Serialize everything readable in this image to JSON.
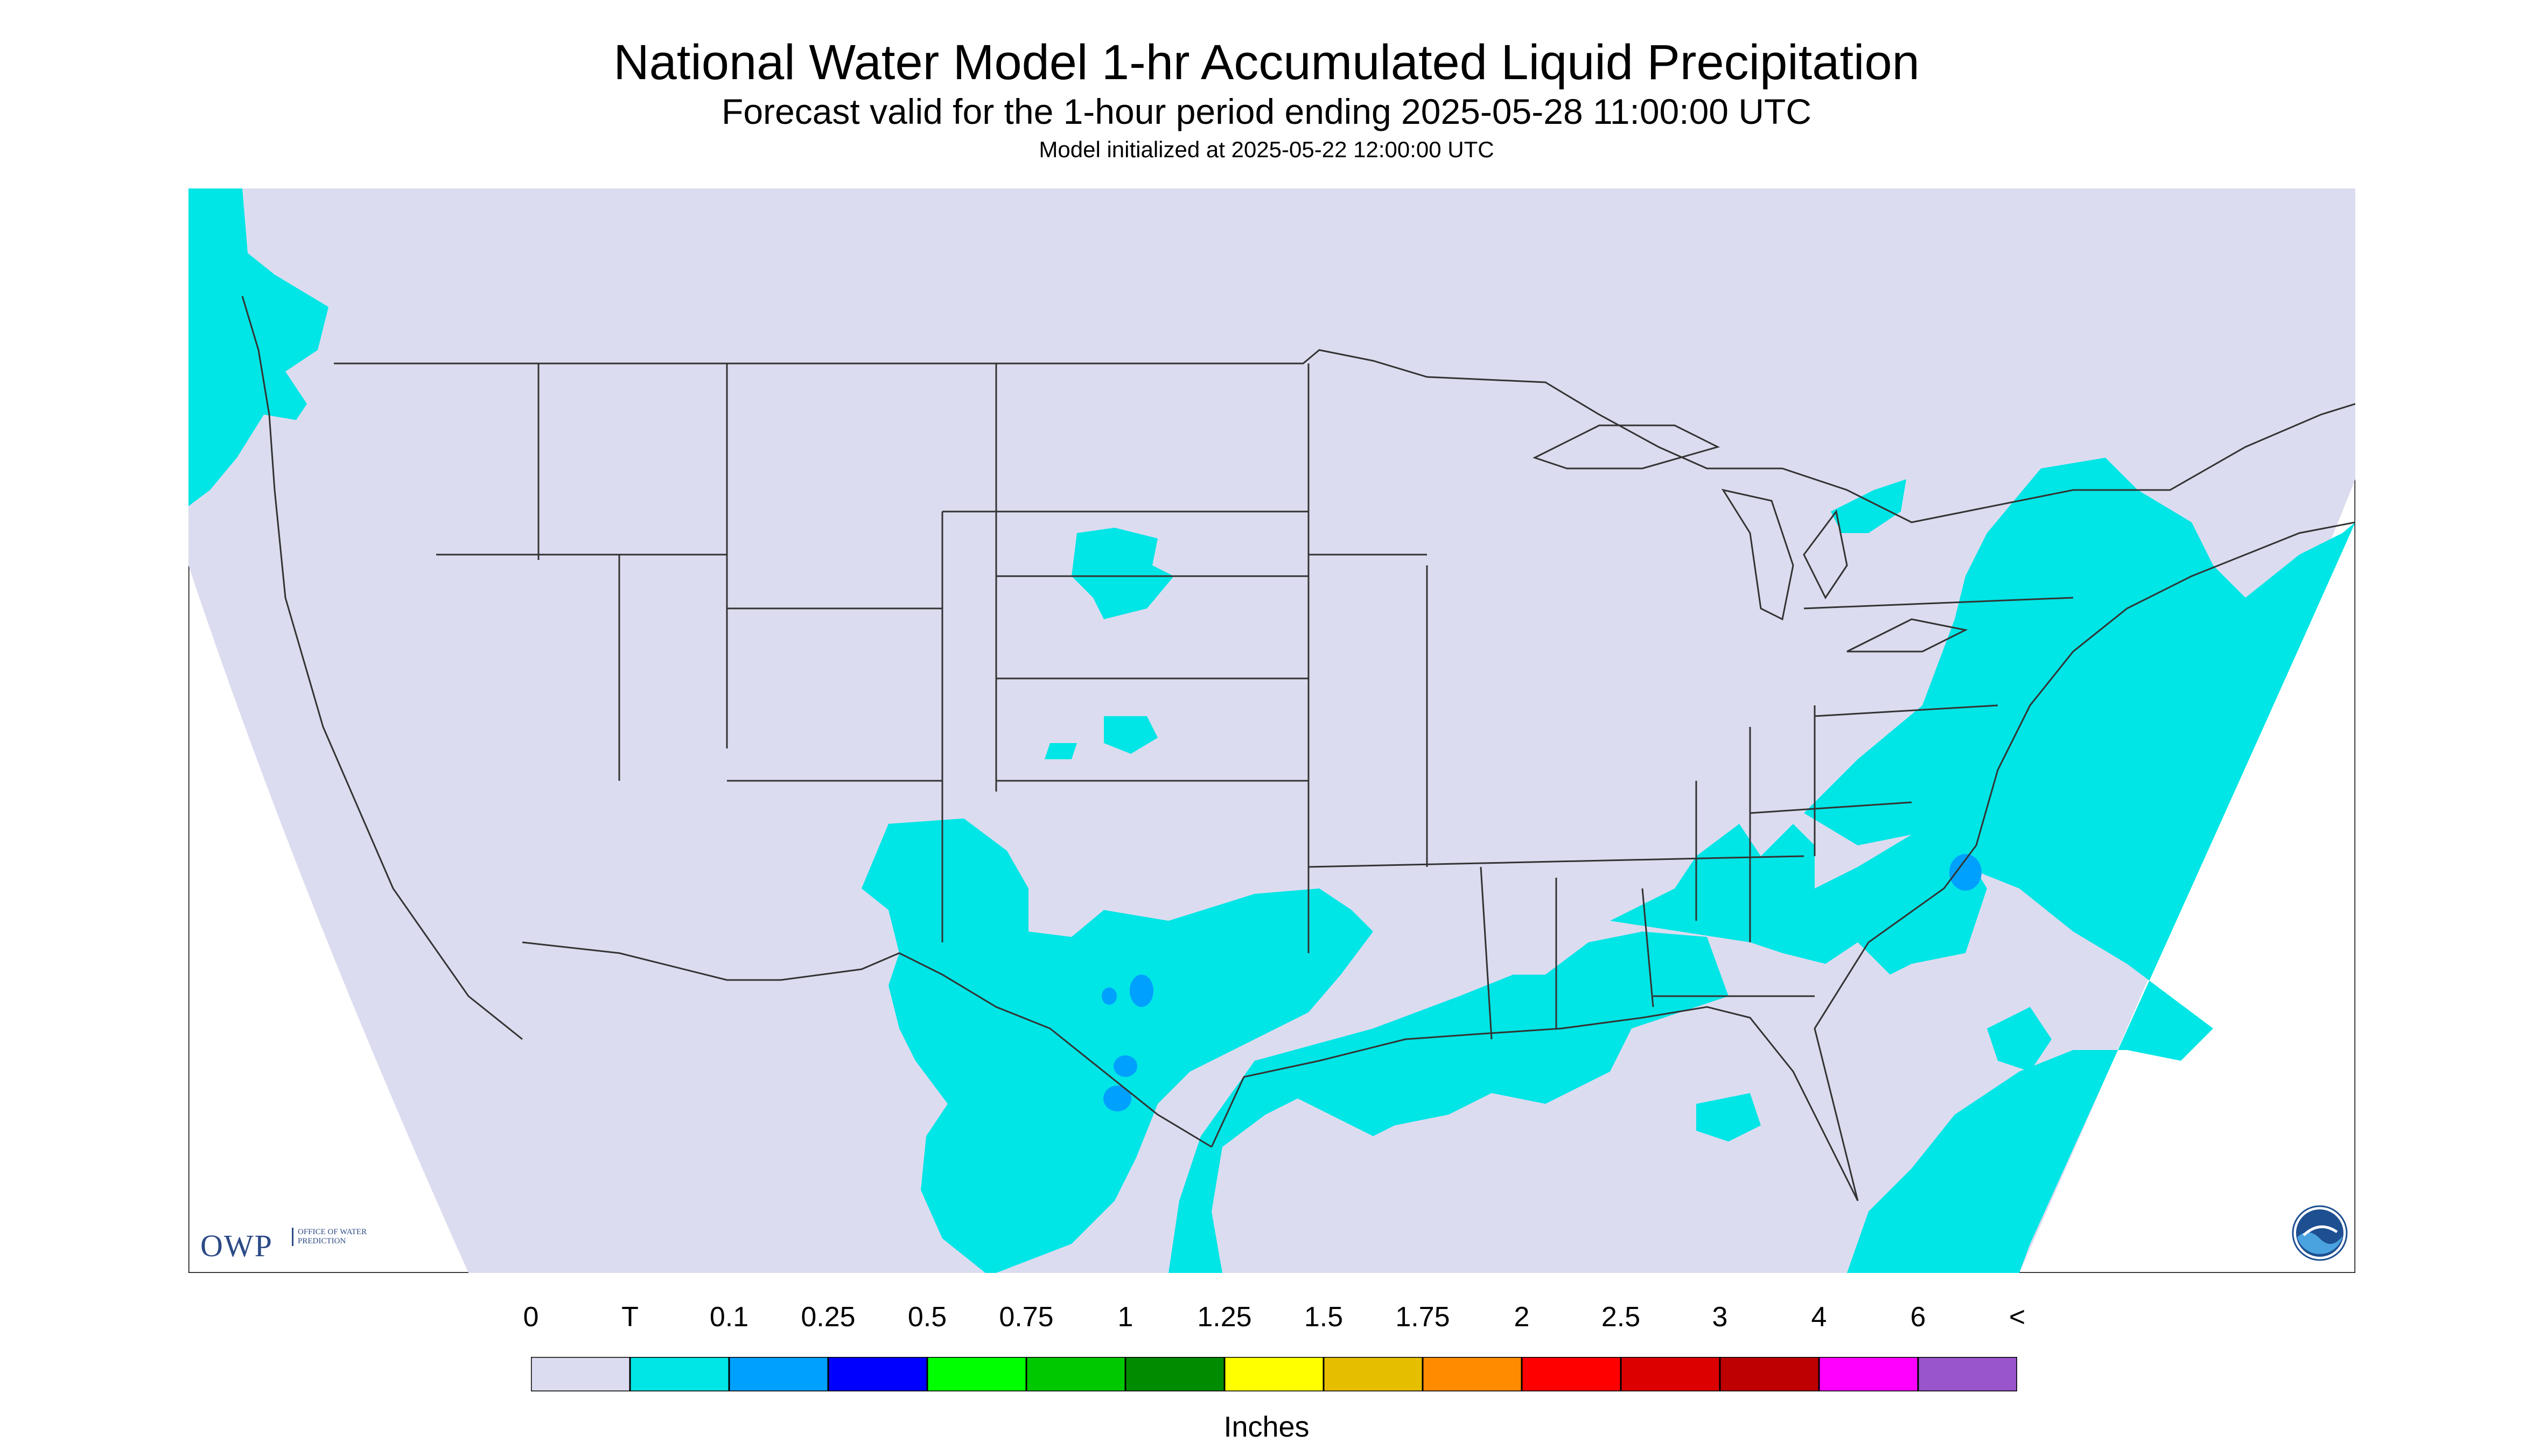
{
  "header": {
    "title": "National Water Model 1-hr Accumulated Liquid Precipitation",
    "subtitle": "Forecast valid for the 1-hour period ending 2025-05-28 11:00:00 UTC",
    "init": "Model initialized at 2025-05-22 12:00:00 UTC"
  },
  "legend": {
    "units": "Inches",
    "ticks": [
      "0",
      "T",
      "0.1",
      "0.25",
      "0.5",
      "0.75",
      "1",
      "1.25",
      "1.5",
      "1.75",
      "2",
      "2.5",
      "3",
      "4",
      "6",
      "<"
    ],
    "colors": [
      "#dcdcf0",
      "#00e5e5",
      "#00a0ff",
      "#0000ff",
      "#00ff00",
      "#00c800",
      "#008c00",
      "#ffff00",
      "#e6be00",
      "#ff8c00",
      "#ff0000",
      "#dc0000",
      "#be0000",
      "#ff00ff",
      "#9955cc"
    ]
  },
  "map": {
    "background": "#dcdcf0",
    "trace_color": "#00e5e5",
    "light_color": "#00a0ff",
    "line_color": "#333333"
  },
  "logos": {
    "owp": "OWP",
    "owp_full": "OFFICE OF WATER PREDICTION",
    "noaa": "NOAA"
  }
}
